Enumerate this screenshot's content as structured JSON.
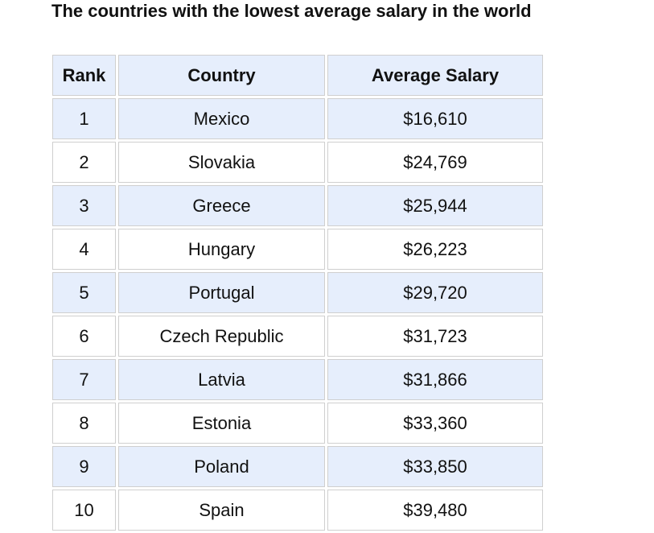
{
  "header": {
    "title": "The countries with the lowest average salary in the world"
  },
  "table": {
    "columns": [
      "Rank",
      "Country",
      "Average Salary"
    ],
    "rows": [
      [
        1,
        "Mexico",
        "$16,610"
      ],
      [
        2,
        "Slovakia",
        "$24,769"
      ],
      [
        3,
        "Greece",
        "$25,944"
      ],
      [
        4,
        "Hungary",
        "$26,223"
      ],
      [
        5,
        "Portugal",
        "$29,720"
      ],
      [
        6,
        "Czech Republic",
        "$31,723"
      ],
      [
        7,
        "Latvia",
        "$31,866"
      ],
      [
        8,
        "Estonia",
        "$33,360"
      ],
      [
        9,
        "Poland",
        "$33,850"
      ],
      [
        10,
        "Spain",
        "$39,480"
      ]
    ]
  }
}
